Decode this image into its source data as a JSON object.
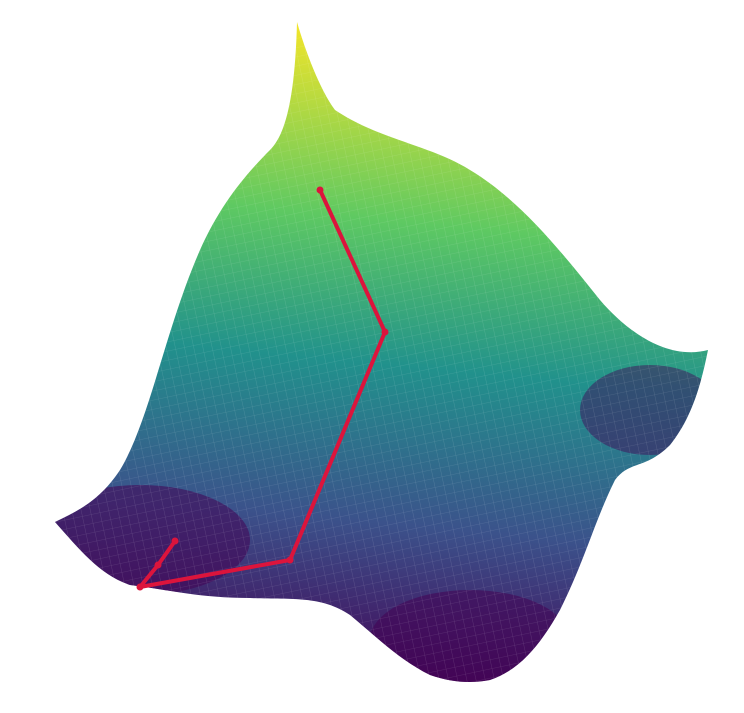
{
  "chart_data": {
    "type": "surface",
    "colormap": [
      "#fde725",
      "#5ec962",
      "#21918c",
      "#3b528b",
      "#440154"
    ],
    "path_color": "#dc143c"
  }
}
